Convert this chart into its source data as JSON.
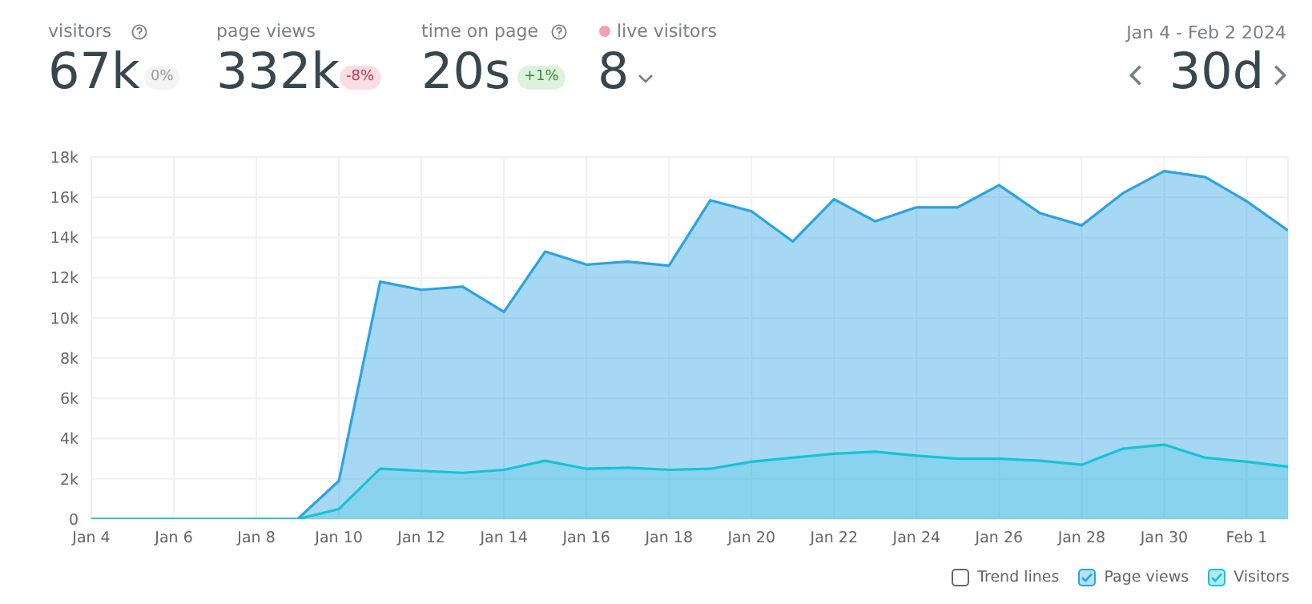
{
  "chart_data": {
    "type": "area",
    "subtitle": "Jan 4 - Feb 2 2024",
    "annotations": [
      "visitors",
      "67k",
      "0%",
      "page views",
      "332k",
      "-8%",
      "time on page",
      "20s",
      "+1%",
      "live visitors",
      "8",
      "30d",
      "Trend lines"
    ],
    "categories": [
      "Jan 4",
      null,
      "Jan 6",
      null,
      "Jan 8",
      null,
      "Jan 10",
      null,
      "Jan 12",
      null,
      "Jan 14",
      null,
      "Jan 16",
      null,
      "Jan 18",
      null,
      "Jan 20",
      null,
      "Jan 22",
      null,
      "Jan 24",
      null,
      "Jan 26",
      null,
      "Jan 28",
      null,
      "Jan 30",
      null,
      "Feb 1",
      null
    ],
    "series": [
      {
        "name": "Page views",
        "color": "#2aa3e4",
        "values": [
          0,
          0,
          0,
          0,
          0,
          0,
          1900,
          11800,
          11400,
          11550,
          10300,
          13300,
          12650,
          12800,
          12600,
          15850,
          15300,
          13800,
          15900,
          14800,
          15500,
          15500,
          16600,
          15200,
          14600,
          16200,
          17300,
          17000,
          15800,
          14350
        ]
      },
      {
        "name": "Visitors",
        "color": "#17c2d8",
        "values": [
          0,
          0,
          0,
          0,
          0,
          0,
          500,
          2500,
          2400,
          2300,
          2450,
          2900,
          2500,
          2550,
          2450,
          2500,
          2850,
          3050,
          3250,
          3350,
          3150,
          3000,
          3000,
          2900,
          2700,
          3500,
          3700,
          3050,
          2850,
          2600
        ]
      }
    ],
    "ylim": [
      0,
      18000
    ],
    "yticks": [
      0,
      {
        "value": 2000,
        "label": "2k"
      },
      {
        "value": 4000,
        "label": "4k"
      },
      {
        "value": 6000,
        "label": "6k"
      },
      {
        "value": 8000,
        "label": "8k"
      },
      {
        "value": 10000,
        "label": "10k"
      },
      {
        "value": 12000,
        "label": "12k"
      },
      {
        "value": 14000,
        "label": "14k"
      },
      {
        "value": 16000,
        "label": "16k"
      },
      {
        "value": 18000,
        "label": "18k"
      }
    ],
    "grid": true,
    "legend": "bottom right"
  }
}
